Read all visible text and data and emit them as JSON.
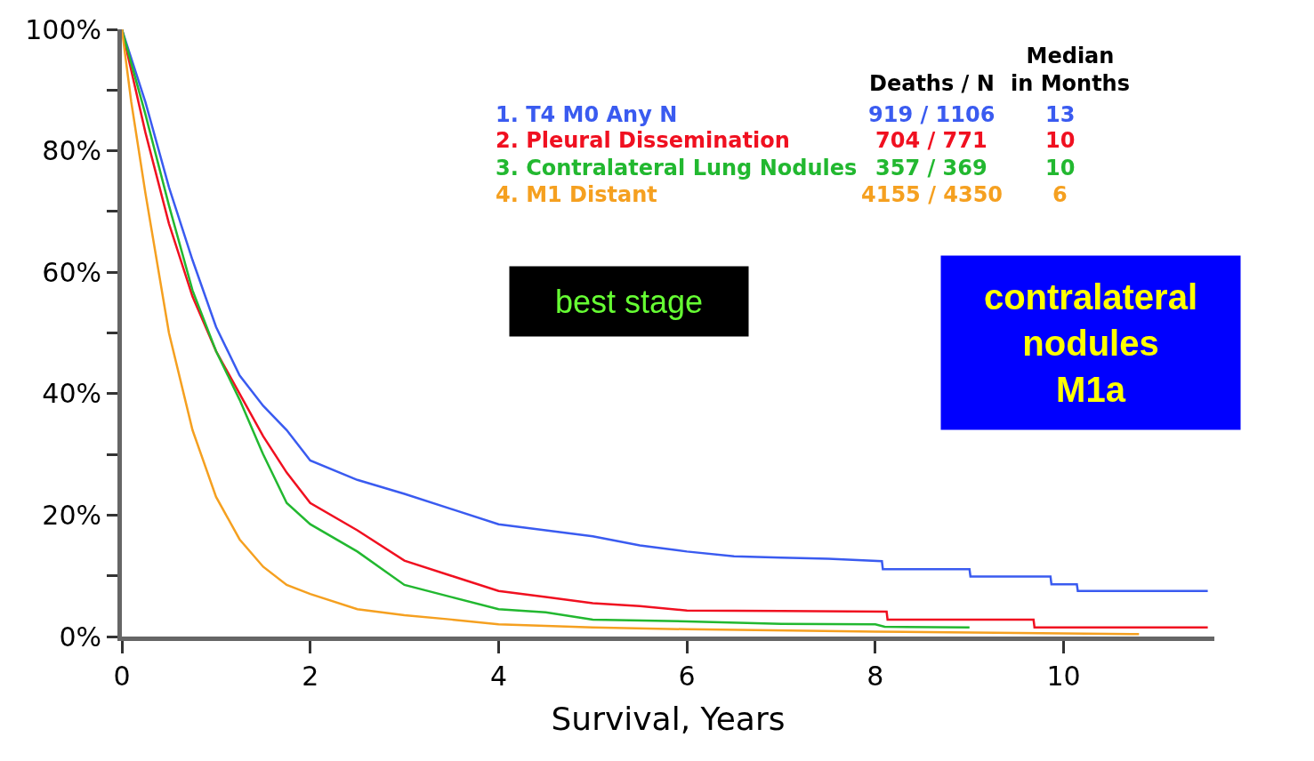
{
  "chart_data": {
    "type": "line",
    "xlabel": "Survival, Years",
    "xlim": [
      0,
      11.6
    ],
    "ylim": [
      0,
      100
    ],
    "xticks": [
      0,
      2,
      4,
      6,
      8,
      10
    ],
    "yticks": [
      {
        "value": 0,
        "label": "0%"
      },
      {
        "value": 10,
        "label": null
      },
      {
        "value": 20,
        "label": "20%"
      },
      {
        "value": 30,
        "label": null
      },
      {
        "value": 40,
        "label": "40%"
      },
      {
        "value": 50,
        "label": null
      },
      {
        "value": 60,
        "label": "60%"
      },
      {
        "value": 70,
        "label": null
      },
      {
        "value": 80,
        "label": "80%"
      },
      {
        "value": 90,
        "label": null
      },
      {
        "value": 100,
        "label": "100%"
      }
    ],
    "legend": false,
    "marker": "none",
    "line_style": "solid",
    "series": [
      {
        "name": "1. T4 M0 Any N",
        "color": "#3a5bf0",
        "x": [
          0,
          0.25,
          0.5,
          0.75,
          1.0,
          1.25,
          1.5,
          1.75,
          2.0,
          2.5,
          3.0,
          3.5,
          4.0,
          4.5,
          5.0,
          5.5,
          6.0,
          6.5,
          7.0,
          7.5,
          8.07,
          8.08,
          9.0,
          9.01,
          9.86,
          9.87,
          10.14,
          10.15,
          11.53
        ],
        "values": [
          100,
          88,
          74,
          62,
          51,
          43,
          38,
          34,
          29,
          25.8,
          23.5,
          21,
          18.5,
          17.5,
          16.5,
          15,
          14,
          13.2,
          13,
          12.8,
          12.4,
          11.1,
          11.1,
          9.9,
          9.9,
          8.6,
          8.6,
          7.5,
          7.5
        ]
      },
      {
        "name": "2. Pleural Dissemination",
        "color": "#f01020",
        "x": [
          0,
          0.25,
          0.5,
          0.75,
          1.0,
          1.25,
          1.5,
          1.75,
          2.0,
          2.5,
          3.0,
          3.5,
          4.0,
          4.5,
          5.0,
          5.5,
          6.0,
          7.0,
          8.12,
          8.13,
          9.68,
          9.69,
          11.53
        ],
        "values": [
          100,
          83,
          68,
          56,
          47,
          40,
          33,
          27,
          22,
          17.5,
          12.5,
          10,
          7.5,
          6.5,
          5.5,
          5,
          4.3,
          4.2,
          4.1,
          2.8,
          2.8,
          1.5,
          1.5
        ]
      },
      {
        "name": "3. Contralateral Lung Nodules",
        "color": "#22b830",
        "x": [
          0,
          0.25,
          0.5,
          0.75,
          1.0,
          1.25,
          1.5,
          1.75,
          2.0,
          2.5,
          3.0,
          3.5,
          4.0,
          4.5,
          5.0,
          6.0,
          7.0,
          8.0,
          8.1,
          9.0
        ],
        "values": [
          100,
          86,
          71,
          57,
          47,
          39,
          30,
          22,
          18.5,
          14,
          8.5,
          6.5,
          4.5,
          4,
          2.8,
          2.5,
          2.1,
          2.0,
          1.6,
          1.5
        ]
      },
      {
        "name": "4. M1 Distant",
        "color": "#f5a020",
        "x": [
          0,
          0.1,
          0.25,
          0.5,
          0.75,
          1.0,
          1.25,
          1.5,
          1.75,
          2.0,
          2.5,
          3.0,
          3.5,
          4.0,
          5.0,
          6.0,
          8.0,
          10.0,
          10.8
        ],
        "values": [
          100,
          88,
          73,
          50,
          34,
          23,
          16,
          11.5,
          8.5,
          7,
          4.5,
          3.5,
          2.8,
          2.0,
          1.5,
          1.2,
          0.8,
          0.5,
          0.4
        ]
      }
    ],
    "annotations": [
      "Deaths / N",
      "Median\nin Months",
      "919 / 1106",
      "13",
      "704 / 771",
      "10",
      "357 / 369",
      "10",
      "4155 / 4350",
      "6",
      "best stage",
      "contralateral\nnodules\nM1a"
    ]
  }
}
